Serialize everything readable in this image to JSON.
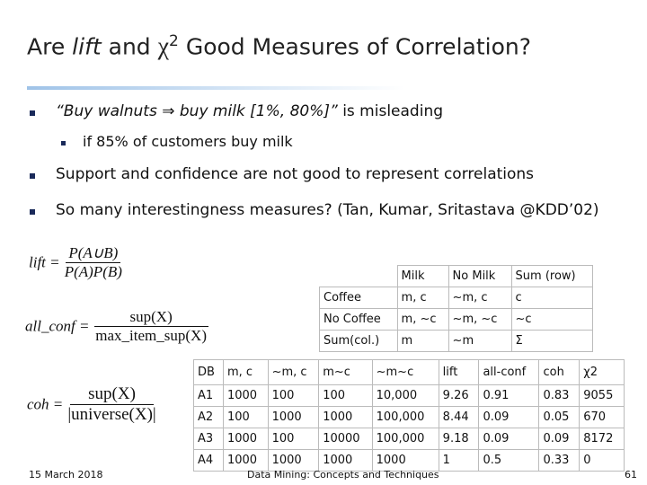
{
  "title": [
    "Are ",
    "lift",
    " and ",
    "χ",
    "2",
    "  Good Measures of Correlation?"
  ],
  "bullets": [
    {
      "italic": "“Buy walnuts ⇒ buy milk [1%, 80%]”",
      "text": " is misleading",
      "sub": "if 85% of customers buy milk"
    },
    {
      "text": "Support and confidence are not good to represent correlations"
    },
    {
      "text": "So many interestingness measures?  (Tan, Kumar, Sritastava @KDD’02)"
    }
  ],
  "formulas": [
    {
      "lhs": "lift =",
      "numerator": "P(A∪B)",
      "denominator": "P(A)P(B)"
    },
    {
      "lhs": "all_conf =",
      "numerator": "sup(X)",
      "denominator": "max_item_sup(X)"
    },
    {
      "lhs": "coh =",
      "numerator": "sup(X)",
      "denominator": "|universe(X)|"
    }
  ],
  "contingency_table": {
    "header": [
      "Milk",
      "No Milk",
      "Sum (row)"
    ],
    "rows": [
      [
        "Coffee",
        "m, c",
        "~m, c",
        "c"
      ],
      [
        "No Coffee",
        "m, ~c",
        "~m, ~c",
        "~c"
      ],
      [
        "Sum(col.)",
        "m",
        "~m",
        "Σ"
      ]
    ]
  },
  "measures_table": {
    "header": [
      "DB",
      "m, c",
      "~m, c",
      "m~c",
      "~m~c",
      "lift",
      "all-conf",
      "coh",
      "χ2"
    ],
    "rows": [
      [
        "A1",
        "1000",
        "100",
        "100",
        "10,000",
        "9.26",
        "0.91",
        "0.83",
        "9055"
      ],
      [
        "A2",
        "100",
        "1000",
        "1000",
        "100,000",
        "8.44",
        "0.09",
        "0.05",
        "670"
      ],
      [
        "A3",
        "1000",
        "100",
        "10000",
        "100,000",
        "9.18",
        "0.09",
        "0.09",
        "8172"
      ],
      [
        "A4",
        "1000",
        "1000",
        "1000",
        "1000",
        "1",
        "0.5",
        "0.33",
        "0"
      ]
    ]
  },
  "footer": {
    "date": "15 March 2018",
    "center": "Data Mining: Concepts and Techniques",
    "page": "61"
  }
}
